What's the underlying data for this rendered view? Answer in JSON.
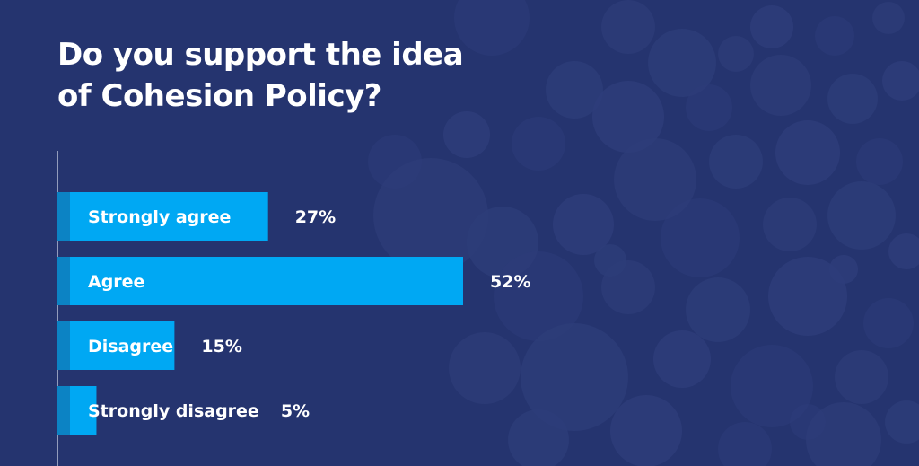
{
  "title_lines": [
    "Do you support the idea",
    "of Cohesion Policy?"
  ],
  "colors": {
    "background": "#25346f",
    "bubble": "#2e3d7a",
    "bar": "#00a8f3",
    "bar_edge": "#0c83c4",
    "axis": "#b8bed6",
    "text": "#ffffff"
  },
  "chart_data": {
    "type": "bar",
    "orientation": "horizontal",
    "title": "Do you support the idea of Cohesion Policy?",
    "categories": [
      "Strongly agree",
      "Agree",
      "Disagree",
      "Strongly disagree"
    ],
    "values": [
      27,
      52,
      15,
      5
    ],
    "value_labels": [
      "27%",
      "52%",
      "15%",
      "5%"
    ],
    "unit": "%",
    "xlim": [
      0,
      100
    ],
    "grid": false,
    "legend": "none"
  }
}
